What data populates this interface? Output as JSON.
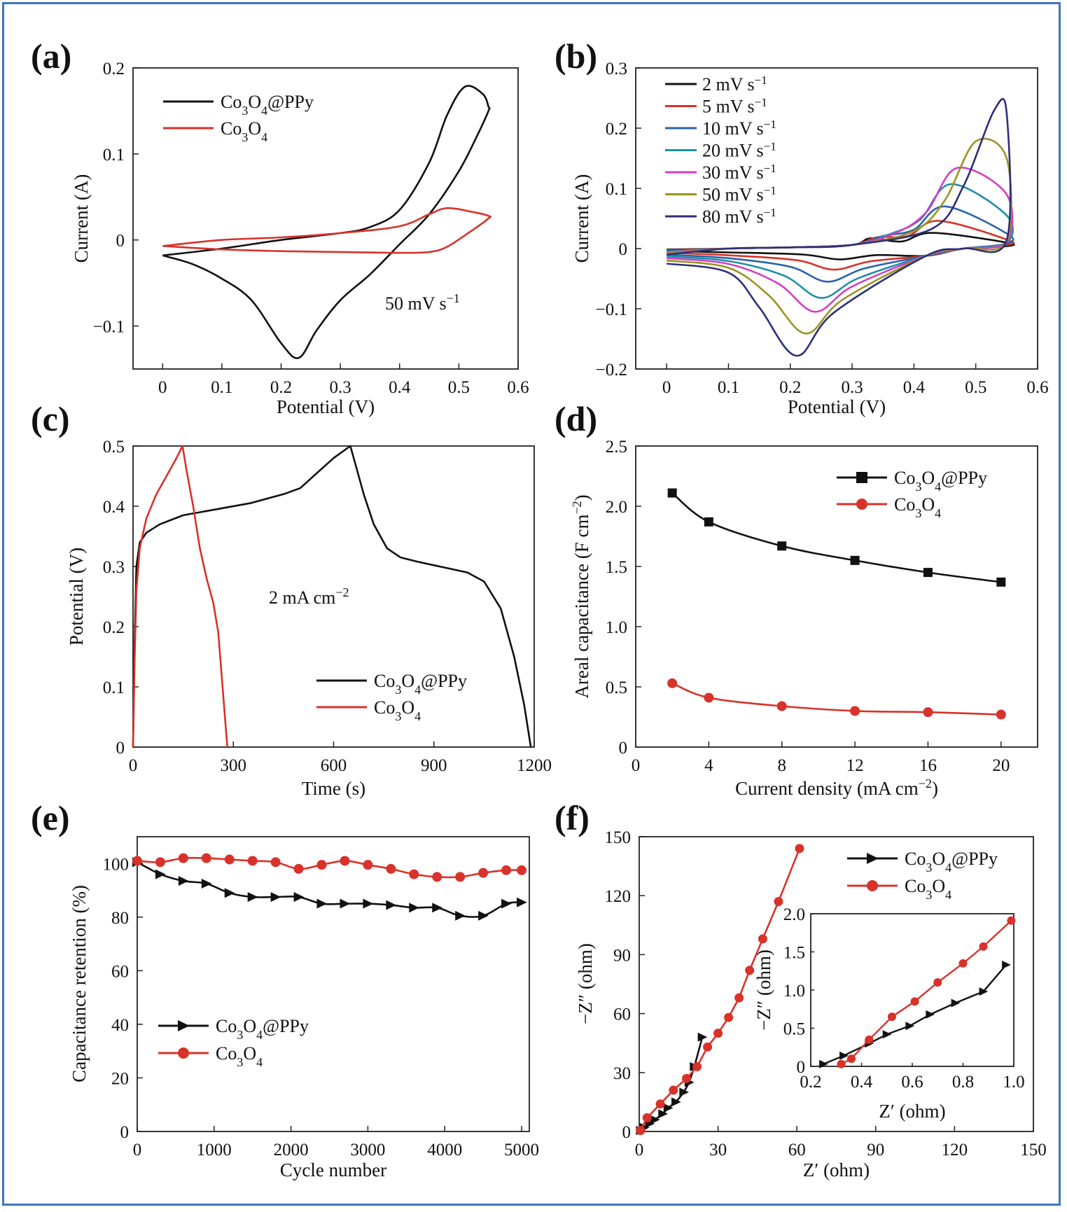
{
  "chart_data": [
    {
      "id": "a",
      "panel_label": "(a)",
      "type": "line",
      "xlabel": "Potential (V)",
      "ylabel": "Current (A)",
      "xlim": [
        -0.05,
        0.6
      ],
      "ylim": [
        -0.15,
        0.2
      ],
      "xticks": [
        0,
        0.1,
        0.2,
        0.3,
        0.4,
        0.5,
        0.6
      ],
      "yticks": [
        -0.1,
        0,
        0.1,
        0.2
      ],
      "xtick_labels": [
        "0",
        "0.1",
        "0.2",
        "0.3",
        "0.4",
        "0.5",
        "0.6"
      ],
      "ytick_labels": [
        "−0.1",
        "0",
        "0.1",
        "0.2"
      ],
      "legend_position": "top-left",
      "annotation": {
        "text": "50 mV s",
        "sup": "−1"
      },
      "series": [
        {
          "name": "Co3O4@PPy",
          "legend": {
            "pre": "Co",
            "s1": "3",
            "mid": "O",
            "s2": "4",
            "post": "@PPy"
          },
          "color": "#111111",
          "x": [
            0.0,
            0.1,
            0.2,
            0.3,
            0.35,
            0.4,
            0.45,
            0.48,
            0.51,
            0.54,
            0.55,
            0.55,
            0.53,
            0.5,
            0.45,
            0.4,
            0.35,
            0.3,
            0.26,
            0.23,
            0.2,
            0.15,
            0.1,
            0.05,
            0.0
          ],
          "y": [
            -0.018,
            -0.01,
            0.0,
            0.008,
            0.015,
            0.035,
            0.09,
            0.145,
            0.178,
            0.17,
            0.155,
            0.15,
            0.12,
            0.08,
            0.03,
            -0.005,
            -0.04,
            -0.07,
            -0.105,
            -0.137,
            -0.12,
            -0.07,
            -0.045,
            -0.028,
            -0.018
          ]
        },
        {
          "name": "Co3O4",
          "legend": {
            "pre": "Co",
            "s1": "3",
            "mid": "O",
            "s2": "4",
            "post": ""
          },
          "color": "#d8322a",
          "x": [
            0.0,
            0.1,
            0.2,
            0.3,
            0.4,
            0.45,
            0.48,
            0.52,
            0.55,
            0.55,
            0.52,
            0.48,
            0.45,
            0.4,
            0.3,
            0.2,
            0.1,
            0.0
          ],
          "y": [
            -0.007,
            0.0,
            0.003,
            0.008,
            0.016,
            0.03,
            0.037,
            0.033,
            0.028,
            0.025,
            0.01,
            -0.008,
            -0.014,
            -0.015,
            -0.014,
            -0.013,
            -0.011,
            -0.007
          ]
        }
      ]
    },
    {
      "id": "b",
      "panel_label": "(b)",
      "type": "line",
      "xlabel": "Potential (V)",
      "ylabel": "Current (A)",
      "xlim": [
        -0.05,
        0.6
      ],
      "ylim": [
        -0.2,
        0.3
      ],
      "xticks": [
        0,
        0.1,
        0.2,
        0.3,
        0.4,
        0.5,
        0.6
      ],
      "yticks": [
        -0.2,
        -0.1,
        0,
        0.1,
        0.2,
        0.3
      ],
      "xtick_labels": [
        "0",
        "0.1",
        "0.2",
        "0.3",
        "0.4",
        "0.5",
        "0.6"
      ],
      "ytick_labels": [
        "−0.2",
        "−0.1",
        "0",
        "0.1",
        "0.2",
        "0.3"
      ],
      "legend_position": "top-left",
      "series": [
        {
          "name": "2 mV s−1",
          "rate": "2 mV s",
          "sup": "−1",
          "color": "#111111",
          "peak_x": 0.43,
          "peak_y": 0.026,
          "end_y": 0.01,
          "cath_x": 0.28,
          "cath_y": -0.018,
          "rev_end": 0.004,
          "start_y": -0.004
        },
        {
          "name": "5 mV s−1",
          "rate": "5 mV s",
          "sup": "−1",
          "color": "#d8322a",
          "peak_x": 0.44,
          "peak_y": 0.046,
          "end_y": 0.015,
          "cath_x": 0.27,
          "cath_y": -0.035,
          "rev_end": 0.006,
          "start_y": -0.007
        },
        {
          "name": "10 mV s−1",
          "rate": "10 mV s",
          "sup": "−1",
          "color": "#2a64a8",
          "peak_x": 0.45,
          "peak_y": 0.07,
          "end_y": 0.025,
          "cath_x": 0.26,
          "cath_y": -0.055,
          "rev_end": 0.008,
          "start_y": -0.01
        },
        {
          "name": "20 mV s−1",
          "rate": "20 mV s",
          "sup": "−1",
          "color": "#1e8fa8",
          "peak_x": 0.46,
          "peak_y": 0.107,
          "end_y": 0.055,
          "cath_x": 0.25,
          "cath_y": -0.082,
          "rev_end": 0.01,
          "start_y": -0.013
        },
        {
          "name": "30 mV s−1",
          "rate": "30 mV s",
          "sup": "−1",
          "color": "#d43fc2",
          "peak_x": 0.47,
          "peak_y": 0.134,
          "end_y": 0.09,
          "cath_x": 0.24,
          "cath_y": -0.105,
          "rev_end": 0.011,
          "start_y": -0.016
        },
        {
          "name": "50 mV s−1",
          "rate": "50 mV s",
          "sup": "−1",
          "color": "#9a9422",
          "peak_x": 0.5,
          "peak_y": 0.178,
          "end_y": 0.15,
          "cath_x": 0.225,
          "cath_y": -0.141,
          "rev_end": 0.012,
          "start_y": -0.02
        },
        {
          "name": "80 mV s−1",
          "rate": "80 mV s",
          "sup": "−1",
          "color": "#2c2f78",
          "peak_x": 0.53,
          "peak_y": 0.23,
          "end_y": 0.225,
          "cath_x": 0.21,
          "cath_y": -0.178,
          "rev_end": 0.014,
          "start_y": -0.025
        }
      ]
    },
    {
      "id": "c",
      "panel_label": "(c)",
      "type": "line",
      "xlabel": "Time (s)",
      "ylabel": "Potential (V)",
      "xlim": [
        0,
        1200
      ],
      "ylim": [
        0,
        0.5
      ],
      "xticks": [
        0,
        300,
        600,
        900,
        1200
      ],
      "yticks": [
        0,
        0.1,
        0.2,
        0.3,
        0.4,
        0.5
      ],
      "xtick_labels": [
        "0",
        "300",
        "600",
        "900",
        "1200"
      ],
      "ytick_labels": [
        "0",
        "0.1",
        "0.2",
        "0.3",
        "0.4",
        "0.5"
      ],
      "legend_position": "bottom-right",
      "annotation": {
        "text": "2 mA cm",
        "sup": "−2"
      },
      "series": [
        {
          "name": "Co3O4@PPy",
          "legend": {
            "pre": "Co",
            "s1": "3",
            "mid": "O",
            "s2": "4",
            "post": "@PPy"
          },
          "color": "#111111",
          "x": [
            0,
            5,
            10,
            20,
            40,
            80,
            150,
            250,
            350,
            450,
            500,
            550,
            600,
            650,
            660,
            690,
            720,
            760,
            800,
            850,
            900,
            1000,
            1050,
            1100,
            1140,
            1170,
            1190
          ],
          "y": [
            0,
            0.18,
            0.3,
            0.34,
            0.356,
            0.37,
            0.385,
            0.395,
            0.405,
            0.42,
            0.43,
            0.455,
            0.48,
            0.5,
            0.48,
            0.42,
            0.37,
            0.33,
            0.315,
            0.308,
            0.302,
            0.29,
            0.275,
            0.23,
            0.15,
            0.07,
            0
          ]
        },
        {
          "name": "Co3O4",
          "legend": {
            "pre": "Co",
            "s1": "3",
            "mid": "O",
            "s2": "4",
            "post": ""
          },
          "color": "#d8322a",
          "x": [
            0,
            5,
            10,
            20,
            40,
            70,
            100,
            130,
            148,
            160,
            180,
            200,
            220,
            240,
            255,
            265,
            275,
            282
          ],
          "y": [
            0,
            0.15,
            0.26,
            0.33,
            0.38,
            0.42,
            0.45,
            0.48,
            0.5,
            0.46,
            0.4,
            0.33,
            0.28,
            0.24,
            0.19,
            0.12,
            0.05,
            0
          ]
        }
      ]
    },
    {
      "id": "d",
      "panel_label": "(d)",
      "type": "line",
      "xlabel": "Current density (mA cm",
      "xlabel_sup": "−2",
      "xlabel_end": ")",
      "ylabel": "Areal capacitance (F cm",
      "ylabel_sup": "−2",
      "ylabel_end": ")",
      "xlim": [
        0,
        22
      ],
      "ylim": [
        0,
        2.5
      ],
      "xticks": [
        0,
        4,
        8,
        12,
        16,
        20
      ],
      "yticks": [
        0,
        0.5,
        1.0,
        1.5,
        2.0,
        2.5
      ],
      "xtick_labels": [
        "0",
        "4",
        "8",
        "12",
        "16",
        "20"
      ],
      "ytick_labels": [
        "0",
        "0.5",
        "1.0",
        "1.5",
        "2.0",
        "2.5"
      ],
      "legend_position": "top-right",
      "series": [
        {
          "name": "Co3O4@PPy",
          "legend": {
            "pre": "Co",
            "s1": "3",
            "mid": "O",
            "s2": "4",
            "post": "@PPy"
          },
          "color": "#111111",
          "marker": "square",
          "x": [
            2,
            4,
            8,
            12,
            16,
            20
          ],
          "y": [
            2.11,
            1.87,
            1.67,
            1.55,
            1.45,
            1.37
          ]
        },
        {
          "name": "Co3O4",
          "legend": {
            "pre": "Co",
            "s1": "3",
            "mid": "O",
            "s2": "4",
            "post": ""
          },
          "color": "#d8322a",
          "marker": "circle",
          "x": [
            2,
            4,
            8,
            12,
            16,
            20
          ],
          "y": [
            0.53,
            0.41,
            0.34,
            0.3,
            0.29,
            0.27
          ]
        }
      ]
    },
    {
      "id": "e",
      "panel_label": "(e)",
      "type": "line",
      "xlabel": "Cycle number",
      "ylabel": "Capacitance retention (%)",
      "xlim": [
        0,
        5100
      ],
      "ylim": [
        0,
        110
      ],
      "xticks": [
        0,
        1000,
        2000,
        3000,
        4000,
        5000
      ],
      "yticks": [
        0,
        20,
        40,
        60,
        80,
        100
      ],
      "xtick_labels": [
        "0",
        "1000",
        "2000",
        "3000",
        "4000",
        "5000"
      ],
      "ytick_labels": [
        "0",
        "20",
        "40",
        "60",
        "80",
        "100"
      ],
      "legend_position": "bottom-left",
      "series": [
        {
          "name": "Co3O4@PPy",
          "legend": {
            "pre": "Co",
            "s1": "3",
            "mid": "O",
            "s2": "4",
            "post": "@PPy"
          },
          "color": "#111111",
          "marker": "triangle-right",
          "x": [
            0,
            300,
            600,
            900,
            1200,
            1500,
            1800,
            2100,
            2400,
            2700,
            3000,
            3300,
            3600,
            3900,
            4200,
            4500,
            4800,
            5000
          ],
          "y": [
            100.5,
            96,
            93.5,
            92.5,
            89,
            87.5,
            87.5,
            87.5,
            85,
            85,
            85,
            84.5,
            83.5,
            83.5,
            80.5,
            80.5,
            85,
            85.5
          ]
        },
        {
          "name": "Co3O4",
          "legend": {
            "pre": "Co",
            "s1": "3",
            "mid": "O",
            "s2": "4",
            "post": ""
          },
          "color": "#d8322a",
          "marker": "circle",
          "x": [
            0,
            300,
            600,
            900,
            1200,
            1500,
            1800,
            2100,
            2400,
            2700,
            3000,
            3300,
            3600,
            3900,
            4200,
            4500,
            4800,
            5000
          ],
          "y": [
            101,
            100.5,
            102,
            102,
            101.5,
            101,
            100.5,
            98,
            99.5,
            101,
            99.5,
            98,
            96,
            95,
            95,
            96.5,
            97.5,
            97.5
          ]
        }
      ]
    },
    {
      "id": "f",
      "panel_label": "(f)",
      "type": "line",
      "xlabel": "Z′ (ohm)",
      "ylabel": "−Z″ (ohm)",
      "xlim": [
        0,
        150
      ],
      "ylim": [
        0,
        150
      ],
      "xticks": [
        0,
        30,
        60,
        90,
        120,
        150
      ],
      "yticks": [
        0,
        30,
        60,
        90,
        120,
        150
      ],
      "xtick_labels": [
        "0",
        "30",
        "60",
        "90",
        "120",
        "150"
      ],
      "ytick_labels": [
        "0",
        "30",
        "60",
        "90",
        "120",
        "150"
      ],
      "legend_position": "top-right",
      "series": [
        {
          "name": "Co3O4@PPy",
          "legend": {
            "pre": "Co",
            "s1": "3",
            "mid": "O",
            "s2": "4",
            "post": "@PPy"
          },
          "color": "#111111",
          "marker": "triangle-right",
          "x": [
            0.5,
            2,
            4,
            6,
            9,
            11,
            14,
            17,
            19,
            21,
            24
          ],
          "y": [
            0.5,
            2,
            4,
            6,
            9,
            12,
            15,
            20,
            25,
            33,
            48
          ]
        },
        {
          "name": "Co3O4",
          "legend": {
            "pre": "Co",
            "s1": "3",
            "mid": "O",
            "s2": "4",
            "post": ""
          },
          "color": "#d8322a",
          "marker": "circle",
          "x": [
            0.5,
            3,
            8,
            13,
            18,
            22,
            26,
            30,
            34,
            38,
            42,
            47,
            53,
            61
          ],
          "y": [
            0.5,
            7,
            14,
            21,
            27,
            33,
            43,
            50,
            58,
            68,
            82,
            98,
            117,
            144
          ]
        }
      ],
      "inset": {
        "xlabel": "Z′ (ohm)",
        "ylabel": "−Z″ (ohm)",
        "xlim": [
          0.2,
          1.0
        ],
        "ylim": [
          0,
          2.0
        ],
        "xticks": [
          0.2,
          0.4,
          0.6,
          0.8,
          1.0
        ],
        "yticks": [
          0,
          0.5,
          1.0,
          1.5,
          2.0
        ],
        "xtick_labels": [
          "0.2",
          "0.4",
          "0.6",
          "0.8",
          "1.0"
        ],
        "ytick_labels": [
          "0",
          "0.5",
          "1.0",
          "1.5",
          "2.0"
        ],
        "series": [
          {
            "name": "Co3O4@PPy",
            "color": "#111111",
            "marker": "triangle-right",
            "x": [
              0.25,
              0.33,
              0.43,
              0.5,
              0.59,
              0.67,
              0.77,
              0.88,
              0.97
            ],
            "y": [
              0.03,
              0.14,
              0.3,
              0.42,
              0.53,
              0.68,
              0.83,
              0.98,
              1.33
            ]
          },
          {
            "name": "Co3O4",
            "color": "#d8322a",
            "marker": "circle",
            "x": [
              0.32,
              0.36,
              0.43,
              0.52,
              0.61,
              0.7,
              0.8,
              0.88,
              0.99
            ],
            "y": [
              0.03,
              0.1,
              0.35,
              0.65,
              0.85,
              1.1,
              1.35,
              1.57,
              1.91
            ]
          }
        ]
      }
    }
  ]
}
